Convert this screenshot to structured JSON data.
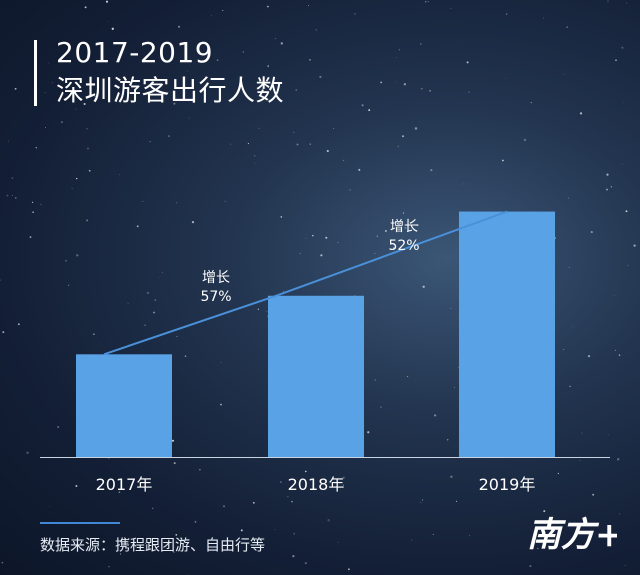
{
  "title": {
    "line1": "2017-2019",
    "line2": "深圳游客出行人数"
  },
  "chart_data": {
    "type": "bar",
    "categories": [
      "2017年",
      "2018年",
      "2019年"
    ],
    "values": [
      1.0,
      1.57,
      2.39
    ],
    "ylim": [
      0,
      2.6
    ],
    "color": "#5aa2e6",
    "trend_line_color": "#4a90d9",
    "annotations": [
      {
        "label": "增长",
        "value": "57%",
        "between": [
          "2017年",
          "2018年"
        ]
      },
      {
        "label": "增长",
        "value": "52%",
        "between": [
          "2018年",
          "2019年"
        ]
      }
    ],
    "grid": false,
    "legend": "none"
  },
  "source": {
    "text": "数据来源：携程跟团游、自由行等"
  },
  "logo": {
    "text": "南方+",
    "color": "#ffffff"
  }
}
